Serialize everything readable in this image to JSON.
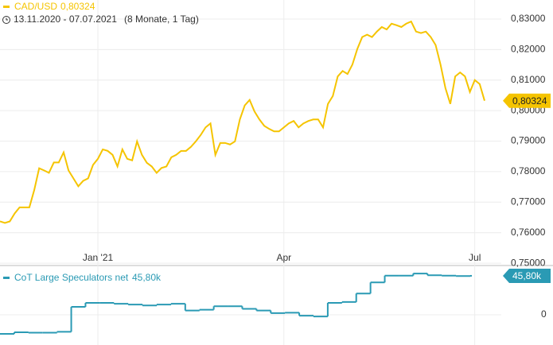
{
  "chart_data": [
    {
      "type": "line",
      "title": "CAD/USD",
      "last_value_label": "0,80324",
      "subtitle": "13.11.2020 - 07.07.2021",
      "period": "(8 Monate, 1 Tag)",
      "color": "#f5c400",
      "grid": true,
      "categories": [
        null,
        null,
        null,
        null,
        null,
        null,
        null,
        null,
        null,
        null,
        null,
        null,
        null,
        null,
        null,
        null,
        null,
        null,
        null,
        null,
        "Jan '21",
        null,
        null,
        null,
        null,
        null,
        null,
        null,
        null,
        null,
        null,
        null,
        null,
        null,
        null,
        null,
        null,
        null,
        null,
        null,
        null,
        null,
        null,
        null,
        null,
        null,
        null,
        null,
        null,
        null,
        null,
        null,
        null,
        null,
        null,
        null,
        null,
        null,
        "Apr",
        null,
        null,
        null,
        null,
        null,
        null,
        null,
        null,
        null,
        null,
        null,
        null,
        null,
        null,
        null,
        null,
        null,
        null,
        null,
        null,
        null,
        null,
        null,
        null,
        null,
        null,
        null,
        null,
        null,
        null,
        null,
        null,
        null,
        null,
        null,
        null,
        null,
        null,
        "Jul",
        null,
        null
      ],
      "values": [
        0.7637,
        0.7632,
        0.7637,
        0.7663,
        0.7683,
        0.7683,
        0.7683,
        0.774,
        0.7811,
        0.7804,
        0.7796,
        0.783,
        0.783,
        0.7863,
        0.7804,
        0.7778,
        0.7752,
        0.777,
        0.7778,
        0.7822,
        0.7842,
        0.7873,
        0.7868,
        0.7855,
        0.7817,
        0.7873,
        0.7842,
        0.7837,
        0.7899,
        0.7855,
        0.7829,
        0.7817,
        0.7796,
        0.7812,
        0.7817,
        0.7847,
        0.7855,
        0.7868,
        0.7868,
        0.7881,
        0.7899,
        0.792,
        0.7945,
        0.7958,
        0.7855,
        0.7894,
        0.7894,
        0.7889,
        0.7899,
        0.7971,
        0.8017,
        0.8035,
        0.7997,
        0.7971,
        0.795,
        0.794,
        0.7932,
        0.7932,
        0.7945,
        0.7958,
        0.7966,
        0.7945,
        0.7958,
        0.7966,
        0.7971,
        0.7971,
        0.7945,
        0.8022,
        0.8048,
        0.8112,
        0.813,
        0.812,
        0.8151,
        0.8202,
        0.8241,
        0.8249,
        0.8241,
        0.8259,
        0.8274,
        0.8266,
        0.8285,
        0.828,
        0.8274,
        0.8285,
        0.8292,
        0.8259,
        0.8254,
        0.8259,
        0.8241,
        0.8215,
        0.8151,
        0.8074,
        0.8022,
        0.8112,
        0.8125,
        0.8112,
        0.8061,
        0.81,
        0.8087,
        0.80324
      ],
      "ylim": [
        0.7495,
        0.8326
      ],
      "yticks": [
        {
          "value": 0.75,
          "label": "0,75000"
        },
        {
          "value": 0.76,
          "label": "0,76000"
        },
        {
          "value": 0.77,
          "label": "0,77000"
        },
        {
          "value": 0.78,
          "label": "0,78000"
        },
        {
          "value": 0.79,
          "label": "0,79000"
        },
        {
          "value": 0.8,
          "label": "0,80000"
        },
        {
          "value": 0.81,
          "label": "0,81000"
        },
        {
          "value": 0.82,
          "label": "0,82000"
        },
        {
          "value": 0.83,
          "label": "0,83000"
        }
      ]
    },
    {
      "type": "step",
      "title": "CoT Large Speculators net",
      "last_value_label": "45,80k",
      "color": "#2a9ab4",
      "values": [
        -22400,
        -20600,
        -21000,
        -21000,
        -20000,
        9300,
        14000,
        14000,
        13000,
        12000,
        11000,
        12000,
        13000,
        5000,
        6000,
        10000,
        10000,
        7000,
        5000,
        2000,
        2500,
        -1000,
        -2000,
        14000,
        15000,
        25000,
        38000,
        46000,
        46000,
        48500,
        46500,
        46000,
        45500,
        45800
      ],
      "ylim": [
        -35500,
        52300
      ],
      "yticks": [
        0
      ]
    }
  ]
}
